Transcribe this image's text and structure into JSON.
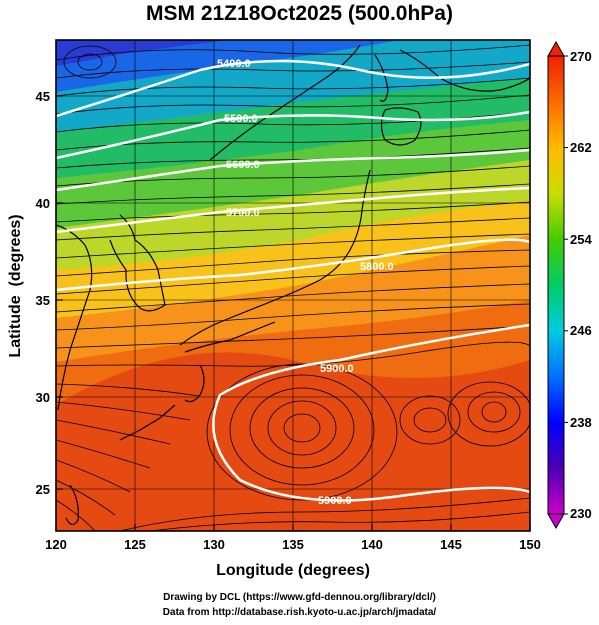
{
  "title": "MSM 21Z18Oct2025 (500.0hPa)",
  "x_axis": {
    "label": "Longitude (degrees)",
    "range": [
      120,
      150
    ],
    "ticks": [
      "120",
      "125",
      "130",
      "135",
      "140",
      "145",
      "150"
    ]
  },
  "y_axis": {
    "label": "Latitude  (degrees)",
    "range": [
      22.5,
      48
    ],
    "ticks": [
      "25",
      "30",
      "35",
      "40",
      "45"
    ]
  },
  "colorbar": {
    "min": 230,
    "max": 270,
    "ticks": [
      "230",
      "238",
      "246",
      "254",
      "262",
      "270"
    ]
  },
  "contours": [
    {
      "label": "5400.0"
    },
    {
      "label": "5500.0"
    },
    {
      "label": "5600.0"
    },
    {
      "label": "5700.0"
    },
    {
      "label": "5800.0"
    },
    {
      "label": "5900.0"
    },
    {
      "label": "5900.0"
    }
  ],
  "credits": {
    "line1": "Drawing by DCL (https://www.gfd-dennou.org/library/dcl/)",
    "line2": "Data from http://database.rish.kyoto-u.ac.jp/arch/jmadata/"
  }
}
